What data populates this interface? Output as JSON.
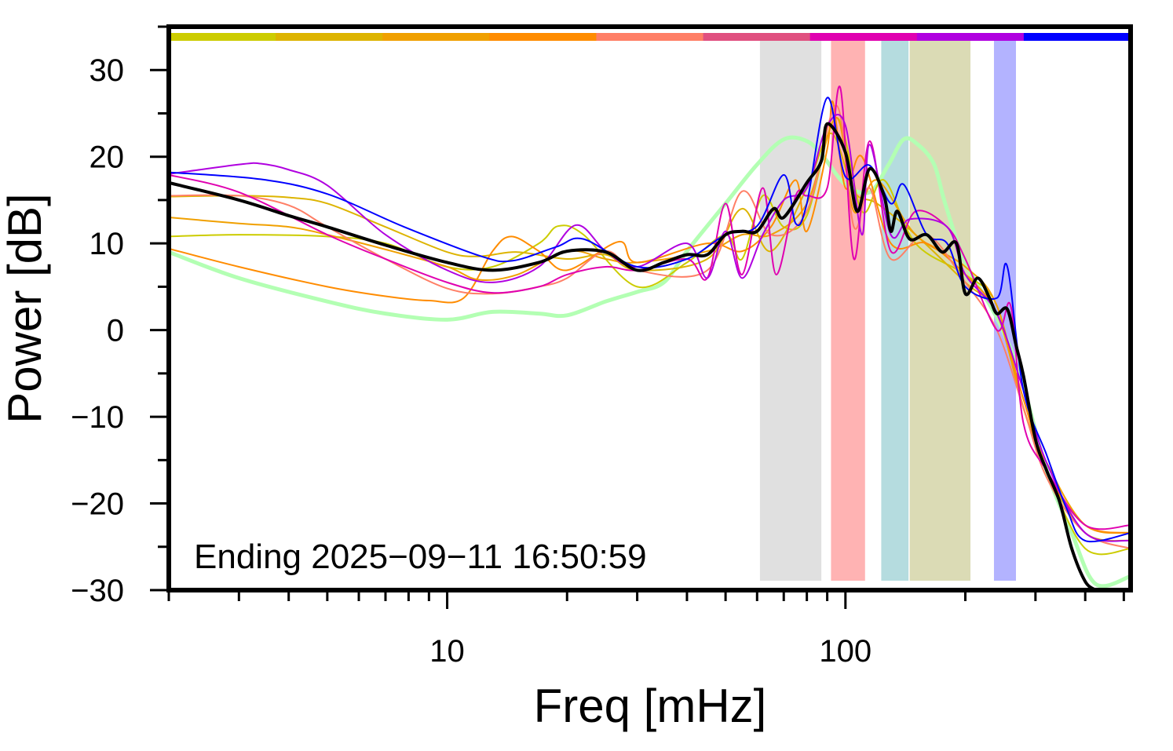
{
  "chart_data": {
    "type": "line",
    "title": "",
    "xlabel": "Freq [mHz]",
    "ylabel": "Power [dB]",
    "xscale": "log",
    "xlim": [
      2,
      520
    ],
    "ylim": [
      -30,
      35
    ],
    "x_ticks": [
      10,
      100
    ],
    "x_tick_labels": [
      "10",
      "100"
    ],
    "y_ticks": [
      30,
      20,
      10,
      0,
      -10,
      -20,
      -30
    ],
    "y_tick_labels": [
      "30",
      "20",
      "10",
      "0",
      "−10",
      "−20",
      "−30"
    ],
    "grid": false,
    "annotation": "Ending 2025−09−11 16:50:59",
    "color_bar": [
      "#cccc00",
      "#ddb400",
      "#f0a000",
      "#ff8c00",
      "#ff7f66",
      "#e05080",
      "#e000b0",
      "#b000e0",
      "#0000ff"
    ],
    "bands": [
      {
        "from": 61,
        "to": 87,
        "color": "#e0e0e0"
      },
      {
        "from": 92,
        "to": 112,
        "color": "#ffb3b3"
      },
      {
        "from": 123,
        "to": 144,
        "color": "#b5dcdf"
      },
      {
        "from": 145,
        "to": 206,
        "color": "#dbdbb5"
      },
      {
        "from": 236,
        "to": 268,
        "color": "#b3b3ff"
      }
    ],
    "series": [
      {
        "color": "#b3ffb3",
        "width": 5,
        "points": [
          [
            2,
            9
          ],
          [
            3,
            6
          ],
          [
            5,
            3.3
          ],
          [
            7,
            1.9
          ],
          [
            10,
            1.2
          ],
          [
            13,
            2.1
          ],
          [
            17,
            1.9
          ],
          [
            20,
            1.7
          ],
          [
            25,
            3.3
          ],
          [
            30,
            4.4
          ],
          [
            35,
            5.5
          ],
          [
            40,
            9.1
          ],
          [
            50,
            14.6
          ],
          [
            60,
            19.1
          ],
          [
            70,
            22
          ],
          [
            80,
            21.8
          ],
          [
            88,
            20
          ],
          [
            100,
            16.8
          ],
          [
            115,
            15.9
          ],
          [
            128,
            19
          ],
          [
            140,
            22
          ],
          [
            152,
            21.4
          ],
          [
            167,
            19.1
          ],
          [
            178,
            14.6
          ],
          [
            200,
            7.8
          ],
          [
            240,
            1.4
          ],
          [
            275,
            -5.3
          ],
          [
            320,
            -16.2
          ],
          [
            370,
            -23.4
          ],
          [
            425,
            -29.3
          ],
          [
            520,
            -28.4
          ]
        ]
      },
      {
        "color": "#cccc00",
        "width": 2,
        "points": [
          [
            2,
            10.8
          ],
          [
            3,
            11
          ],
          [
            5,
            10.8
          ],
          [
            7,
            10
          ],
          [
            10,
            7.3
          ],
          [
            13,
            7.3
          ],
          [
            17,
            10
          ],
          [
            19,
            12
          ],
          [
            22,
            11
          ],
          [
            30,
            5
          ],
          [
            40,
            7.8
          ],
          [
            50,
            11
          ],
          [
            55,
            8.2
          ],
          [
            62,
            15.5
          ],
          [
            70,
            11.9
          ],
          [
            80,
            13.2
          ],
          [
            95,
            24.5
          ],
          [
            110,
            13.7
          ],
          [
            125,
            17.3
          ],
          [
            150,
            10
          ],
          [
            200,
            6.4
          ],
          [
            240,
            2.8
          ],
          [
            280,
            -9
          ],
          [
            320,
            -16.2
          ],
          [
            400,
            -25.2
          ],
          [
            520,
            -25.2
          ]
        ]
      },
      {
        "color": "#ddb400",
        "width": 2,
        "points": [
          [
            2,
            15.4
          ],
          [
            3,
            15.5
          ],
          [
            4,
            15.3
          ],
          [
            5,
            14.6
          ],
          [
            7,
            11.9
          ],
          [
            10,
            9
          ],
          [
            12,
            8.5
          ],
          [
            15,
            9
          ],
          [
            20,
            8.2
          ],
          [
            25,
            8.7
          ],
          [
            30,
            6.9
          ],
          [
            45,
            8.2
          ],
          [
            55,
            14
          ],
          [
            65,
            9.1
          ],
          [
            80,
            16.4
          ],
          [
            92,
            22.7
          ],
          [
            105,
            16
          ],
          [
            120,
            14.6
          ],
          [
            150,
            11
          ],
          [
            200,
            5.5
          ],
          [
            240,
            1.9
          ],
          [
            280,
            -9
          ],
          [
            320,
            -16.2
          ],
          [
            400,
            -23.4
          ],
          [
            520,
            -24.3
          ]
        ]
      },
      {
        "color": "#f0a000",
        "width": 2,
        "points": [
          [
            2,
            13
          ],
          [
            3,
            12.3
          ],
          [
            4,
            11.9
          ],
          [
            5,
            11
          ],
          [
            7,
            9.3
          ],
          [
            10,
            7.3
          ],
          [
            12,
            5.8
          ],
          [
            15,
            6.4
          ],
          [
            20,
            9.1
          ],
          [
            25,
            8.2
          ],
          [
            30,
            7.8
          ],
          [
            45,
            9.1
          ],
          [
            55,
            11
          ],
          [
            65,
            11
          ],
          [
            80,
            14.6
          ],
          [
            95,
            24.5
          ],
          [
            105,
            13.7
          ],
          [
            120,
            17.3
          ],
          [
            150,
            11
          ],
          [
            200,
            7.3
          ],
          [
            240,
            2.8
          ],
          [
            280,
            -9
          ],
          [
            320,
            -15.3
          ],
          [
            400,
            -22.5
          ],
          [
            520,
            -23.4
          ]
        ]
      },
      {
        "color": "#ff8c00",
        "width": 2,
        "points": [
          [
            2,
            9.4
          ],
          [
            3,
            7.3
          ],
          [
            5,
            5
          ],
          [
            7,
            3.9
          ],
          [
            9,
            3.4
          ],
          [
            11,
            3.7
          ],
          [
            13,
            9.1
          ],
          [
            14.5,
            10.8
          ],
          [
            17,
            9.1
          ],
          [
            20,
            6.9
          ],
          [
            27,
            10.2
          ],
          [
            30,
            7.8
          ],
          [
            45,
            10
          ],
          [
            55,
            9.1
          ],
          [
            65,
            11.9
          ],
          [
            75,
            17.3
          ],
          [
            80,
            11.4
          ],
          [
            90,
            20.9
          ],
          [
            93,
            26.3
          ],
          [
            100,
            16.4
          ],
          [
            110,
            20
          ],
          [
            130,
            10
          ],
          [
            160,
            10
          ],
          [
            200,
            6.4
          ],
          [
            240,
            1.9
          ],
          [
            280,
            -8
          ],
          [
            320,
            -16.2
          ],
          [
            400,
            -22.5
          ],
          [
            520,
            -23.4
          ]
        ]
      },
      {
        "color": "#ff7f66",
        "width": 2,
        "points": [
          [
            2,
            15.5
          ],
          [
            3,
            15.5
          ],
          [
            4,
            14.4
          ],
          [
            5,
            11.9
          ],
          [
            7,
            8.2
          ],
          [
            10,
            4.8
          ],
          [
            13,
            4.2
          ],
          [
            17,
            5
          ],
          [
            20,
            6
          ],
          [
            25,
            9.1
          ],
          [
            30,
            6.9
          ],
          [
            45,
            6.9
          ],
          [
            55,
            16
          ],
          [
            65,
            11
          ],
          [
            80,
            13.7
          ],
          [
            95,
            25.9
          ],
          [
            105,
            11.9
          ],
          [
            115,
            16.4
          ],
          [
            130,
            8.2
          ],
          [
            160,
            11
          ],
          [
            200,
            5.5
          ],
          [
            240,
            0
          ],
          [
            280,
            -9
          ],
          [
            320,
            -17
          ],
          [
            400,
            -23.4
          ],
          [
            520,
            -25.2
          ]
        ]
      },
      {
        "color": "#e000b0",
        "width": 2,
        "points": [
          [
            2,
            17.9
          ],
          [
            3,
            15.9
          ],
          [
            5,
            11
          ],
          [
            7,
            8.2
          ],
          [
            10,
            5.5
          ],
          [
            13,
            4.3
          ],
          [
            17,
            5
          ],
          [
            20,
            6.4
          ],
          [
            25,
            7.3
          ],
          [
            30,
            6.9
          ],
          [
            40,
            8.2
          ],
          [
            45,
            6
          ],
          [
            50,
            14.6
          ],
          [
            55,
            6.4
          ],
          [
            62,
            16.4
          ],
          [
            67,
            6.4
          ],
          [
            75,
            15.5
          ],
          [
            80,
            15.5
          ],
          [
            90,
            16.4
          ],
          [
            97,
            28
          ],
          [
            105,
            8.2
          ],
          [
            115,
            21.8
          ],
          [
            130,
            9.1
          ],
          [
            150,
            13.7
          ],
          [
            180,
            11.9
          ],
          [
            200,
            8.2
          ],
          [
            240,
            0
          ],
          [
            260,
            2.8
          ],
          [
            280,
            -10.8
          ],
          [
            320,
            -16.2
          ],
          [
            400,
            -22.5
          ],
          [
            520,
            -22.5
          ]
        ]
      },
      {
        "color": "#b000e0",
        "width": 2,
        "points": [
          [
            2,
            18
          ],
          [
            3,
            19.1
          ],
          [
            3.4,
            19.2
          ],
          [
            4,
            18.5
          ],
          [
            5,
            16.7
          ],
          [
            7,
            11
          ],
          [
            10,
            6.9
          ],
          [
            13,
            5.5
          ],
          [
            17,
            7.3
          ],
          [
            21,
            12.1
          ],
          [
            25,
            9.1
          ],
          [
            30,
            7.3
          ],
          [
            40,
            10
          ],
          [
            45,
            6
          ],
          [
            50,
            11.4
          ],
          [
            55,
            6
          ],
          [
            62,
            11
          ],
          [
            70,
            15
          ],
          [
            80,
            16.4
          ],
          [
            90,
            23.6
          ],
          [
            100,
            23.6
          ],
          [
            110,
            11
          ],
          [
            115,
            21.4
          ],
          [
            130,
            11
          ],
          [
            145,
            12.8
          ],
          [
            180,
            11.9
          ],
          [
            200,
            6.4
          ],
          [
            240,
            1.9
          ],
          [
            280,
            -7
          ],
          [
            320,
            -15.3
          ],
          [
            400,
            -23.4
          ],
          [
            520,
            -24.3
          ]
        ]
      },
      {
        "color": "#0000ff",
        "width": 2,
        "points": [
          [
            2,
            18.2
          ],
          [
            3.4,
            17.4
          ],
          [
            5,
            15.7
          ],
          [
            7.8,
            11.9
          ],
          [
            12.2,
            8.5
          ],
          [
            14.6,
            8
          ],
          [
            18.8,
            9.6
          ],
          [
            22,
            10.5
          ],
          [
            30,
            7.3
          ],
          [
            40,
            8.2
          ],
          [
            50,
            11
          ],
          [
            60,
            12
          ],
          [
            70,
            17.9
          ],
          [
            75,
            12.3
          ],
          [
            80,
            14.6
          ],
          [
            90,
            26.8
          ],
          [
            100,
            17.7
          ],
          [
            115,
            19
          ],
          [
            130,
            14.6
          ],
          [
            140,
            16.8
          ],
          [
            160,
            11
          ],
          [
            180,
            10
          ],
          [
            200,
            5
          ],
          [
            240,
            3.7
          ],
          [
            255,
            7.3
          ],
          [
            280,
            -7
          ],
          [
            320,
            -14.4
          ],
          [
            360,
            -20.7
          ],
          [
            400,
            -24.3
          ],
          [
            520,
            -23.4
          ]
        ]
      },
      {
        "color": "#000000",
        "width": 4,
        "points": [
          [
            2,
            17
          ],
          [
            3,
            15
          ],
          [
            4,
            13.2
          ],
          [
            5,
            11.9
          ],
          [
            7,
            9.8
          ],
          [
            10,
            7.8
          ],
          [
            13,
            6.9
          ],
          [
            17,
            7.8
          ],
          [
            20,
            9.1
          ],
          [
            25,
            9
          ],
          [
            30,
            6.9
          ],
          [
            35,
            7.8
          ],
          [
            40,
            8.7
          ],
          [
            45,
            8.7
          ],
          [
            50,
            11
          ],
          [
            55,
            11.4
          ],
          [
            60,
            11.4
          ],
          [
            66,
            14
          ],
          [
            70,
            13
          ],
          [
            80,
            17
          ],
          [
            87,
            19.5
          ],
          [
            90,
            23.8
          ],
          [
            100,
            20.5
          ],
          [
            107,
            13.7
          ],
          [
            115,
            18.6
          ],
          [
            125,
            15.5
          ],
          [
            130,
            11.4
          ],
          [
            135,
            13.7
          ],
          [
            145,
            10.5
          ],
          [
            160,
            11
          ],
          [
            175,
            9
          ],
          [
            190,
            10
          ],
          [
            200,
            4.2
          ],
          [
            215,
            6
          ],
          [
            230,
            3.7
          ],
          [
            240,
            1.9
          ],
          [
            255,
            2.4
          ],
          [
            268,
            -1.7
          ],
          [
            280,
            -5.3
          ],
          [
            300,
            -12.6
          ],
          [
            320,
            -16.2
          ],
          [
            345,
            -19.8
          ],
          [
            370,
            -25.2
          ],
          [
            400,
            -29
          ],
          [
            425,
            -30
          ]
        ]
      }
    ]
  }
}
